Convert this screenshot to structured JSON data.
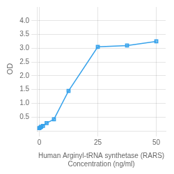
{
  "chart_data": {
    "type": "line",
    "x": [
      0,
      0.39,
      0.78,
      1.563,
      3.125,
      6.25,
      12.5,
      25,
      37.5,
      50
    ],
    "values": [
      0.1,
      0.12,
      0.15,
      0.18,
      0.28,
      0.42,
      1.45,
      3.05,
      3.1,
      3.25
    ],
    "xlabel": "Human Arginyl-tRNA synthetase (RARS)\nConcentration (ng/ml)",
    "ylabel": "OD",
    "xlim": [
      -1,
      54
    ],
    "xticks": [
      0,
      25,
      50
    ],
    "ylim": [
      0,
      4.5
    ],
    "yticks": [
      0.5,
      1,
      1.5,
      2,
      2.5,
      3,
      3.5,
      4
    ],
    "grid": true,
    "marker": "square"
  }
}
